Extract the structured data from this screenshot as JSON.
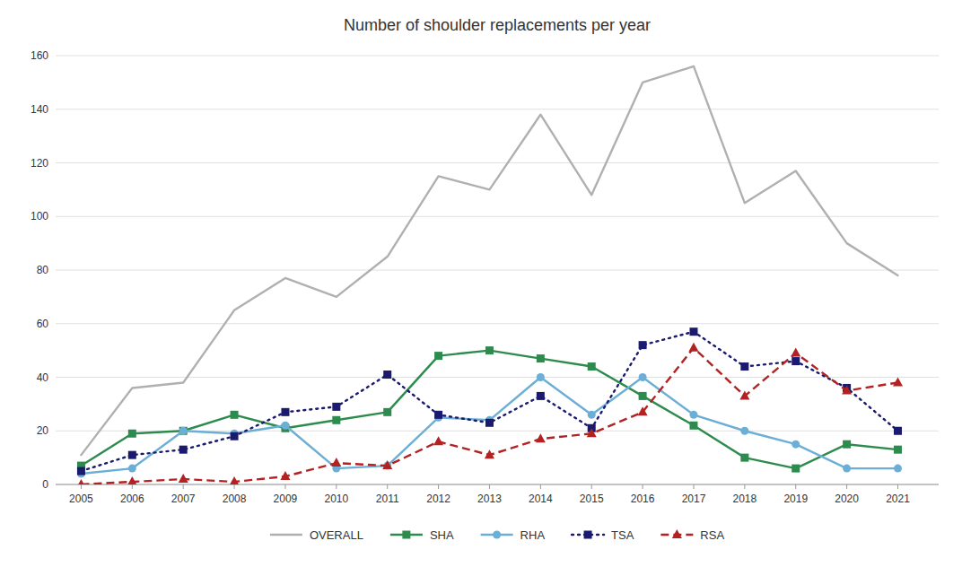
{
  "chart_data": {
    "type": "line",
    "title": "Number of shoulder replacements per year",
    "x": [
      2005,
      2006,
      2007,
      2008,
      2009,
      2010,
      2011,
      2012,
      2013,
      2014,
      2015,
      2016,
      2017,
      2018,
      2019,
      2020,
      2021
    ],
    "series": [
      {
        "name": "OVERALL",
        "color": "#b0b0b0",
        "marker": "none",
        "line_style": "solid",
        "values": [
          11,
          36,
          38,
          65,
          77,
          70,
          85,
          115,
          110,
          138,
          108,
          150,
          156,
          105,
          117,
          90,
          78
        ]
      },
      {
        "name": "SHA",
        "color": "#2e8b4e",
        "marker": "square",
        "line_style": "solid",
        "values": [
          7,
          19,
          20,
          26,
          21,
          24,
          27,
          48,
          50,
          47,
          44,
          33,
          22,
          10,
          6,
          15,
          13
        ]
      },
      {
        "name": "RHA",
        "color": "#6baed6",
        "marker": "circle",
        "line_style": "solid",
        "values": [
          4,
          6,
          20,
          19,
          22,
          6,
          7,
          25,
          24,
          40,
          26,
          40,
          26,
          20,
          15,
          6,
          6
        ]
      },
      {
        "name": "TSA",
        "color": "#1a1a6e",
        "marker": "square",
        "line_style": "dotted",
        "values": [
          5,
          11,
          13,
          18,
          27,
          29,
          41,
          26,
          23,
          33,
          21,
          52,
          57,
          44,
          46,
          36,
          20
        ]
      },
      {
        "name": "RSA",
        "color": "#b22222",
        "marker": "triangle",
        "line_style": "dashed",
        "values": [
          0,
          1,
          2,
          1,
          3,
          8,
          7,
          16,
          11,
          17,
          19,
          27,
          51,
          33,
          49,
          35,
          38
        ]
      }
    ],
    "xlim": [
      2004.5,
      2021.8
    ],
    "xticks": [
      2005,
      2006,
      2007,
      2008,
      2009,
      2010,
      2011,
      2012,
      2013,
      2014,
      2015,
      2016,
      2017,
      2018,
      2019,
      2020,
      2021
    ],
    "ylim": [
      0,
      160
    ],
    "yticks": [
      0,
      20,
      40,
      60,
      80,
      100,
      120,
      140,
      160
    ],
    "grid": true,
    "legend": "bottom"
  }
}
